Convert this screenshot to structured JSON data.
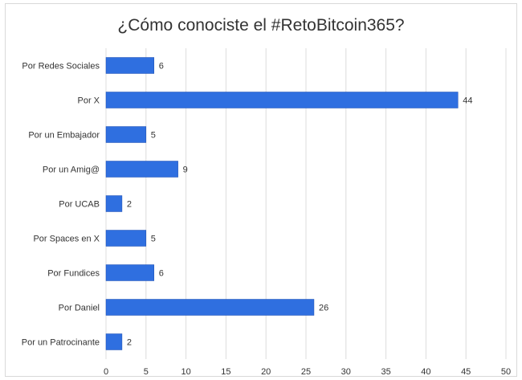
{
  "chart_data": {
    "type": "bar",
    "orientation": "horizontal",
    "title": "¿Cómo conociste el #RetoBitcoin365?",
    "categories": [
      "Por Redes Sociales",
      "Por X",
      "Por un Embajador",
      "Por un Amig@",
      "Por UCAB",
      "Por Spaces en X",
      "Por Fundices",
      "Por Daniel",
      "Por un Patrocinante"
    ],
    "values": [
      6,
      44,
      5,
      9,
      2,
      5,
      6,
      26,
      2
    ],
    "xlim": [
      0,
      50
    ],
    "xticks": [
      "0",
      "5",
      "10",
      "15",
      "20",
      "25",
      "30",
      "35",
      "40",
      "45",
      "50"
    ],
    "grid": true,
    "data_labels": true,
    "colors": {
      "bar": "#2f6fe0",
      "bar_edge": "#1f4fb0",
      "grid": "#dcdcdc",
      "text": "#333333"
    }
  }
}
